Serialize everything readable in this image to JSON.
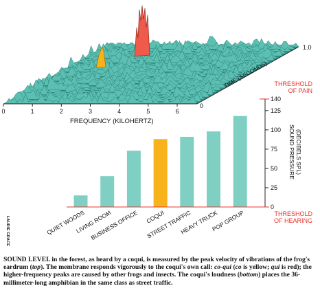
{
  "spectrogram": {
    "frequency_axis_label": "FREQUENCY (KILOHERTZ)",
    "frequency_ticks": [
      "0",
      "1",
      "2",
      "3",
      "4",
      "5",
      "6"
    ],
    "time_axis_label": "TIME (SECONDS)",
    "time_ticks": [
      "0",
      "1.0"
    ],
    "co_color": "#f7b21c",
    "qui_color": "#f05a4a",
    "surface_color": "#5bbfb2"
  },
  "chart_data": {
    "type": "bar",
    "categories": [
      "QUIET WOODS",
      "LIVING ROOM",
      "BUSINESS OFFICE",
      "COQUI",
      "STREET TRAFFIC",
      "HEAVY TRUCK",
      "POP GROUP"
    ],
    "values": [
      15,
      40,
      73,
      88,
      91,
      98,
      118
    ],
    "highlight": "COQUI",
    "ylabel_line1": "SOUND PRESSURE",
    "ylabel_line2": "(DECIBELS SPL)",
    "yticks": [
      "0",
      "25",
      "50",
      "75",
      "100",
      "125",
      "140"
    ],
    "ylim": [
      0,
      140
    ],
    "top_label_line1": "THRESHOLD",
    "top_label_line2": "OF PAIN",
    "bottom_label_line1": "THRESHOLD",
    "bottom_label_line2": "OF HEARING",
    "bar_color": "#7fd0c3",
    "highlight_color": "#f7b21c",
    "threshold_color": "#e8352d"
  },
  "caption": {
    "lead": "SOUND LEVEL",
    "text_1": " in the forest, as heard by a coqui, is measured by the peak velocity of vibrations of the frog's eardrum (",
    "top": "top",
    "text_2": "). The membrane responds vigorously to the coqui's own call: ",
    "coqui_call": "co-qui",
    "text_3": " (",
    "co": "co",
    "text_4": " is yellow; ",
    "qui": "qui",
    "text_5": " is red); the higher-frequency peaks are caused by other frogs and insects. The coqui's loudness (",
    "bottom": "bottom",
    "text_6": ") places the 36-millimeter-long amphibian in the same class as street traffic."
  },
  "credit": "LAURIE GRACE"
}
